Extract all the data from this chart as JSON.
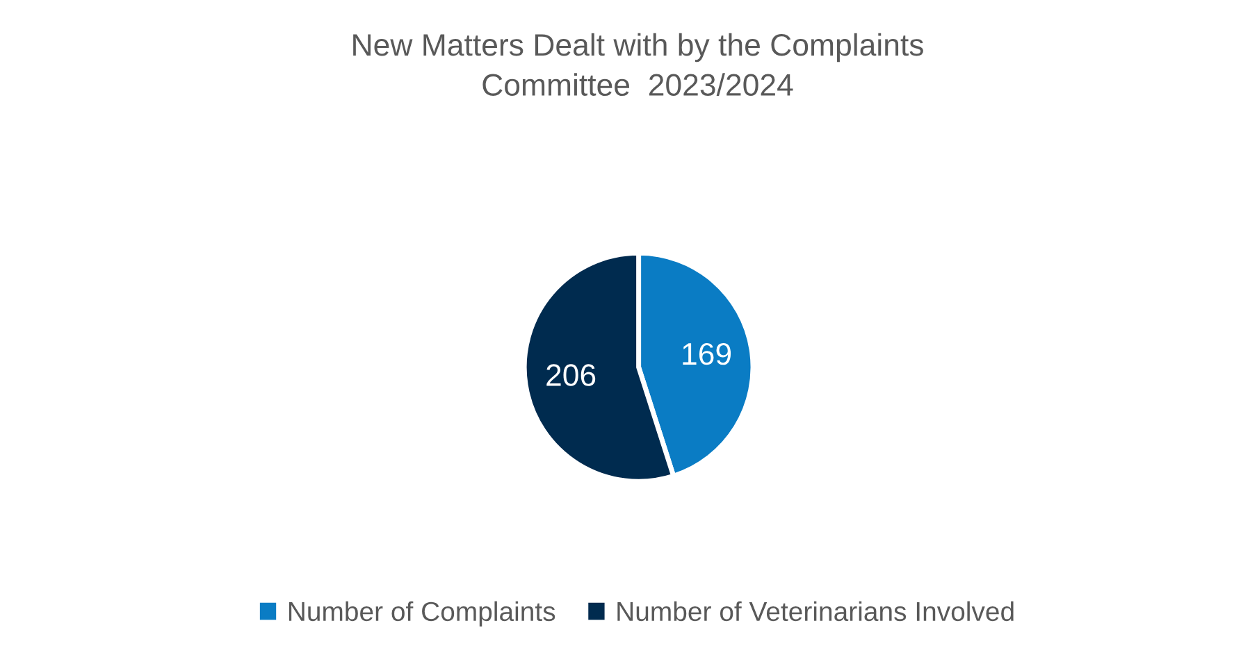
{
  "chart_data": {
    "type": "pie",
    "title": "New Matters Dealt with by the Complaints\nCommittee  2023/2024",
    "categories": [
      "Number of Complaints",
      "Number of Veterinarians Involved"
    ],
    "values": [
      169,
      206
    ],
    "colors": [
      "#0a7cc4",
      "#002b4f"
    ],
    "data_labels": true,
    "legend": "bottom"
  }
}
